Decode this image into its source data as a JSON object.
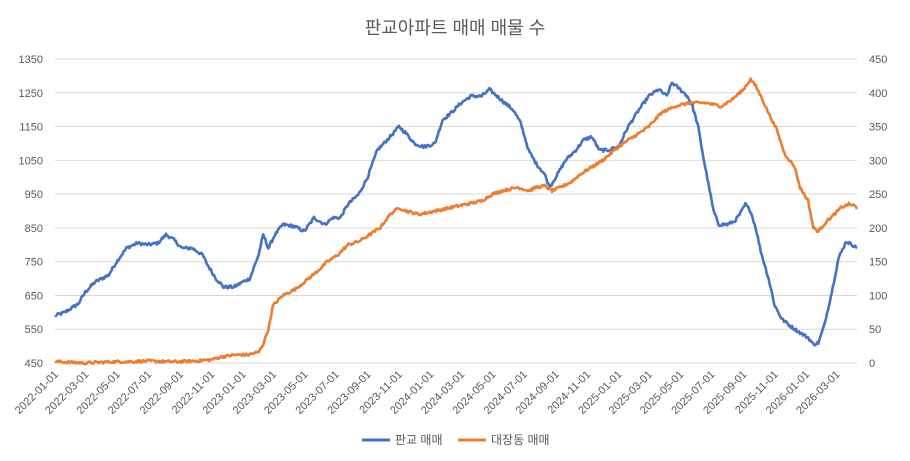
{
  "chart_data": {
    "type": "line",
    "title": "판교아파트 매매 매물 수",
    "xlabel": "",
    "ylabel": "",
    "x_start": "2022-01-01",
    "x_end": "2026-04-10",
    "x_ticks": [
      "2022-01-01",
      "2022-03-01",
      "2022-05-01",
      "2022-07-01",
      "2022-09-01",
      "2022-11-01",
      "2023-01-01",
      "2023-03-01",
      "2023-05-01",
      "2023-07-01",
      "2023-09-01",
      "2023-11-01",
      "2024-01-01",
      "2024-03-01",
      "2024-05-01",
      "2024-07-01",
      "2024-09-01",
      "2024-11-01",
      "2025-01-01",
      "2025-03-01",
      "2025-05-01",
      "2025-07-01",
      "2025-09-01",
      "2025-11-01",
      "2026-01-01",
      "2026-03-01"
    ],
    "y_left": {
      "min": 450,
      "max": 1350,
      "ticks": [
        450,
        550,
        650,
        750,
        850,
        950,
        1050,
        1150,
        1250,
        1350
      ]
    },
    "y_right": {
      "min": 0,
      "max": 450,
      "ticks": [
        0,
        50,
        100,
        150,
        200,
        250,
        300,
        350,
        400,
        450
      ]
    },
    "grid": true,
    "legend": "bottom",
    "series": [
      {
        "name": "판교 매매",
        "axis": "left",
        "color": "#4472c4",
        "points": [
          [
            "2022-01-01",
            590
          ],
          [
            "2022-01-20",
            600
          ],
          [
            "2022-02-15",
            625
          ],
          [
            "2022-03-01",
            660
          ],
          [
            "2022-03-20",
            690
          ],
          [
            "2022-04-15",
            710
          ],
          [
            "2022-05-01",
            750
          ],
          [
            "2022-05-20",
            790
          ],
          [
            "2022-06-10",
            805
          ],
          [
            "2022-07-01",
            800
          ],
          [
            "2022-07-20",
            805
          ],
          [
            "2022-08-05",
            830
          ],
          [
            "2022-08-20",
            815
          ],
          [
            "2022-09-05",
            790
          ],
          [
            "2022-09-25",
            790
          ],
          [
            "2022-10-15",
            770
          ],
          [
            "2022-10-25",
            740
          ],
          [
            "2022-11-10",
            700
          ],
          [
            "2022-11-25",
            675
          ],
          [
            "2022-12-15",
            675
          ],
          [
            "2023-01-01",
            690
          ],
          [
            "2023-01-15",
            700
          ],
          [
            "2023-02-01",
            770
          ],
          [
            "2023-02-10",
            830
          ],
          [
            "2023-02-20",
            790
          ],
          [
            "2023-03-05",
            830
          ],
          [
            "2023-03-20",
            860
          ],
          [
            "2023-04-10",
            855
          ],
          [
            "2023-05-01",
            840
          ],
          [
            "2023-05-20",
            880
          ],
          [
            "2023-06-10",
            860
          ],
          [
            "2023-06-25",
            880
          ],
          [
            "2023-07-10",
            880
          ],
          [
            "2023-07-25",
            920
          ],
          [
            "2023-08-15",
            950
          ],
          [
            "2023-09-01",
            1000
          ],
          [
            "2023-09-20",
            1080
          ],
          [
            "2023-10-15",
            1120
          ],
          [
            "2023-11-01",
            1150
          ],
          [
            "2023-11-15",
            1130
          ],
          [
            "2023-12-01",
            1100
          ],
          [
            "2023-12-20",
            1090
          ],
          [
            "2024-01-10",
            1100
          ],
          [
            "2024-01-25",
            1170
          ],
          [
            "2024-02-10",
            1190
          ],
          [
            "2024-03-01",
            1220
          ],
          [
            "2024-03-20",
            1240
          ],
          [
            "2024-04-10",
            1240
          ],
          [
            "2024-04-25",
            1260
          ],
          [
            "2024-05-10",
            1240
          ],
          [
            "2024-05-25",
            1220
          ],
          [
            "2024-06-10",
            1200
          ],
          [
            "2024-06-25",
            1160
          ],
          [
            "2024-07-10",
            1080
          ],
          [
            "2024-07-25",
            1040
          ],
          [
            "2024-08-10",
            1010
          ],
          [
            "2024-08-20",
            970
          ],
          [
            "2024-09-01",
            1000
          ],
          [
            "2024-09-20",
            1050
          ],
          [
            "2024-10-10",
            1080
          ],
          [
            "2024-10-25",
            1110
          ],
          [
            "2024-11-10",
            1120
          ],
          [
            "2024-11-25",
            1080
          ],
          [
            "2024-12-10",
            1080
          ],
          [
            "2025-01-01",
            1090
          ],
          [
            "2025-01-20",
            1150
          ],
          [
            "2025-02-10",
            1200
          ],
          [
            "2025-03-01",
            1240
          ],
          [
            "2025-03-20",
            1260
          ],
          [
            "2025-04-05",
            1240
          ],
          [
            "2025-04-15",
            1280
          ],
          [
            "2025-05-01",
            1260
          ],
          [
            "2025-05-15",
            1240
          ],
          [
            "2025-05-25",
            1210
          ],
          [
            "2025-06-05",
            1150
          ],
          [
            "2025-06-15",
            1060
          ],
          [
            "2025-06-25",
            980
          ],
          [
            "2025-07-05",
            900
          ],
          [
            "2025-07-15",
            860
          ],
          [
            "2025-08-01",
            860
          ],
          [
            "2025-08-15",
            870
          ],
          [
            "2025-08-25",
            890
          ],
          [
            "2025-09-05",
            920
          ],
          [
            "2025-09-15",
            900
          ],
          [
            "2025-09-25",
            850
          ],
          [
            "2025-10-05",
            780
          ],
          [
            "2025-10-20",
            700
          ],
          [
            "2025-11-01",
            620
          ],
          [
            "2025-11-15",
            580
          ],
          [
            "2025-12-01",
            560
          ],
          [
            "2025-12-20",
            540
          ],
          [
            "2026-01-05",
            525
          ],
          [
            "2026-01-15",
            505
          ],
          [
            "2026-01-25",
            510
          ],
          [
            "2026-02-05",
            560
          ],
          [
            "2026-02-20",
            660
          ],
          [
            "2026-03-05",
            760
          ],
          [
            "2026-03-20",
            810
          ],
          [
            "2026-04-01",
            800
          ],
          [
            "2026-04-10",
            790
          ]
        ]
      },
      {
        "name": "대장동 매매",
        "axis": "right",
        "color": "#ed7d31",
        "points": [
          [
            "2022-01-01",
            2
          ],
          [
            "2022-02-01",
            1
          ],
          [
            "2022-03-01",
            0
          ],
          [
            "2022-04-01",
            1
          ],
          [
            "2022-05-01",
            2
          ],
          [
            "2022-06-01",
            2
          ],
          [
            "2022-07-01",
            3
          ],
          [
            "2022-08-01",
            2
          ],
          [
            "2022-09-01",
            2
          ],
          [
            "2022-10-01",
            3
          ],
          [
            "2022-11-01",
            5
          ],
          [
            "2022-11-20",
            9
          ],
          [
            "2022-12-15",
            12
          ],
          [
            "2023-01-10",
            12
          ],
          [
            "2023-02-01",
            16
          ],
          [
            "2023-02-10",
            28
          ],
          [
            "2023-02-20",
            50
          ],
          [
            "2023-03-01",
            85
          ],
          [
            "2023-03-20",
            100
          ],
          [
            "2023-04-15",
            110
          ],
          [
            "2023-05-01",
            120
          ],
          [
            "2023-05-25",
            135
          ],
          [
            "2023-06-15",
            150
          ],
          [
            "2023-07-05",
            160
          ],
          [
            "2023-07-25",
            175
          ],
          [
            "2023-08-15",
            180
          ],
          [
            "2023-09-05",
            190
          ],
          [
            "2023-09-25",
            200
          ],
          [
            "2023-10-15",
            220
          ],
          [
            "2023-11-01",
            230
          ],
          [
            "2023-11-15",
            225
          ],
          [
            "2023-12-10",
            220
          ],
          [
            "2024-01-10",
            225
          ],
          [
            "2024-02-10",
            230
          ],
          [
            "2024-03-10",
            235
          ],
          [
            "2024-04-10",
            240
          ],
          [
            "2024-05-01",
            250
          ],
          [
            "2024-05-20",
            255
          ],
          [
            "2024-06-20",
            260
          ],
          [
            "2024-07-10",
            255
          ],
          [
            "2024-07-25",
            260
          ],
          [
            "2024-08-10",
            262
          ],
          [
            "2024-08-25",
            255
          ],
          [
            "2024-09-10",
            260
          ],
          [
            "2024-10-01",
            268
          ],
          [
            "2024-10-20",
            280
          ],
          [
            "2024-11-10",
            290
          ],
          [
            "2024-12-01",
            300
          ],
          [
            "2025-01-01",
            320
          ],
          [
            "2025-01-20",
            330
          ],
          [
            "2025-02-10",
            340
          ],
          [
            "2025-03-01",
            350
          ],
          [
            "2025-03-25",
            370
          ],
          [
            "2025-04-20",
            380
          ],
          [
            "2025-05-20",
            385
          ],
          [
            "2025-06-20",
            385
          ],
          [
            "2025-07-20",
            380
          ],
          [
            "2025-08-10",
            390
          ],
          [
            "2025-09-01",
            405
          ],
          [
            "2025-09-15",
            420
          ],
          [
            "2025-09-25",
            410
          ],
          [
            "2025-10-05",
            395
          ],
          [
            "2025-10-20",
            370
          ],
          [
            "2025-11-05",
            345
          ],
          [
            "2025-11-20",
            310
          ],
          [
            "2025-12-10",
            290
          ],
          [
            "2025-12-20",
            260
          ],
          [
            "2026-01-05",
            240
          ],
          [
            "2026-01-15",
            200
          ],
          [
            "2026-01-25",
            195
          ],
          [
            "2026-02-10",
            210
          ],
          [
            "2026-02-25",
            220
          ],
          [
            "2026-03-10",
            230
          ],
          [
            "2026-03-25",
            235
          ],
          [
            "2026-04-05",
            233
          ],
          [
            "2026-04-10",
            228
          ]
        ]
      }
    ]
  }
}
